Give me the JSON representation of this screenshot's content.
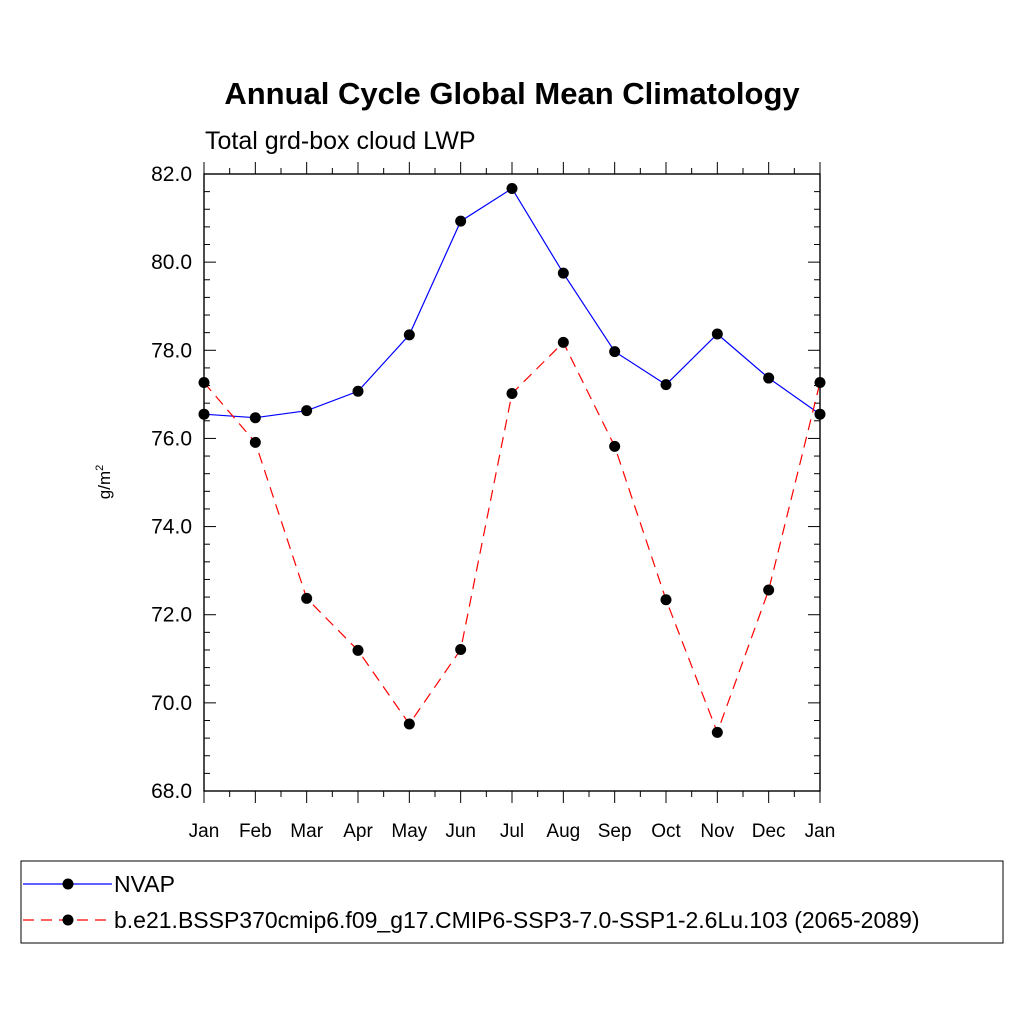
{
  "chart_data": {
    "type": "line",
    "title": "Annual Cycle Global Mean Climatology",
    "subtitle": "Total grd-box cloud LWP",
    "xlabel": "",
    "ylabel": "g/m",
    "ylabel_superscript": "2",
    "categories": [
      "Jan",
      "Feb",
      "Mar",
      "Apr",
      "May",
      "Jun",
      "Jul",
      "Aug",
      "Sep",
      "Oct",
      "Nov",
      "Dec",
      "Jan"
    ],
    "ylim": [
      68.0,
      82.0
    ],
    "yticks": [
      "68.0",
      "70.0",
      "72.0",
      "74.0",
      "76.0",
      "78.0",
      "80.0",
      "82.0"
    ],
    "grid": false,
    "legend_position": "bottom",
    "series": [
      {
        "name": "NVAP",
        "color": "#0000ff",
        "dash": "solid",
        "values": [
          76.55,
          76.47,
          76.63,
          77.07,
          78.35,
          80.93,
          81.67,
          79.75,
          77.97,
          77.22,
          78.37,
          77.37,
          76.55
        ]
      },
      {
        "name": "b.e21.BSSP370cmip6.f09_g17.CMIP6-SSP3-7.0-SSP1-2.6Lu.103 (2065-2089)",
        "color": "#ff0000",
        "dash": "dashed",
        "values": [
          77.27,
          75.91,
          72.37,
          71.19,
          69.52,
          71.21,
          77.02,
          78.18,
          75.82,
          72.34,
          69.33,
          72.56,
          77.27
        ]
      }
    ]
  }
}
